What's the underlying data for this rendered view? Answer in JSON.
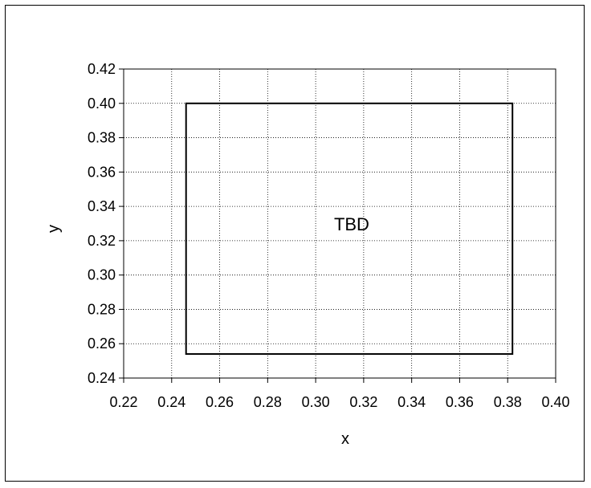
{
  "chart_data": {
    "type": "scatter",
    "title": "",
    "xlabel": "x",
    "ylabel": "y",
    "xlim": [
      0.22,
      0.4
    ],
    "ylim": [
      0.24,
      0.42
    ],
    "x_ticks": [
      "0.22",
      "0.24",
      "0.26",
      "0.28",
      "0.30",
      "0.32",
      "0.34",
      "0.36",
      "0.38",
      "0.40"
    ],
    "y_ticks": [
      "0.24",
      "0.26",
      "0.28",
      "0.30",
      "0.32",
      "0.34",
      "0.36",
      "0.38",
      "0.40",
      "0.42"
    ],
    "grid": true,
    "grid_style": "dotted",
    "region": {
      "label": "TBD",
      "x": [
        0.246,
        0.382
      ],
      "y": [
        0.254,
        0.4
      ],
      "label_x": 0.315,
      "label_y": 0.326
    }
  }
}
